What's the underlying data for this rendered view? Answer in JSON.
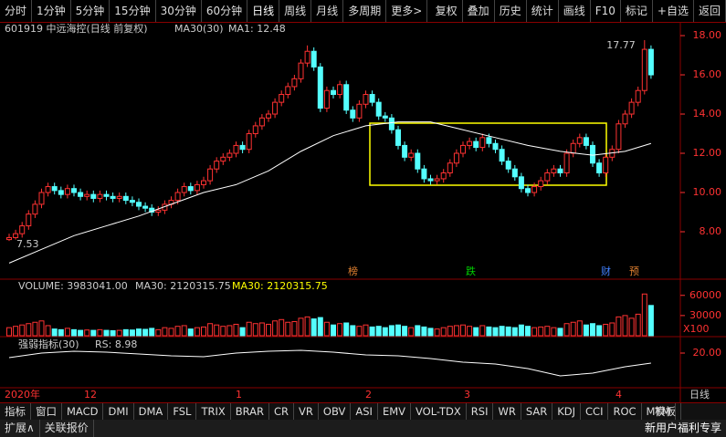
{
  "toolbar": {
    "left": [
      "分时",
      "1分钟",
      "5分钟",
      "15分钟",
      "30分钟",
      "60分钟",
      "日线",
      "周线",
      "月线",
      "多周期",
      "更多>"
    ],
    "right": [
      "复权",
      "叠加",
      "历史",
      "统计",
      "画线",
      "F10",
      "标记",
      "+自选",
      "返回"
    ]
  },
  "header": {
    "symbol": "601919 中远海控(日线 前复权)",
    "ma_label": "MA30(30)",
    "ma_value": "MA1: 12.48"
  },
  "chart_data": [
    {
      "type": "candlestick",
      "up_color": "#ff3232",
      "down_color": "#54ffff",
      "ylim": [
        5.86,
        18.56
      ],
      "yticks": [
        {
          "value": 8,
          "label": "8.00"
        },
        {
          "value": 10,
          "label": "10.00"
        },
        {
          "value": 12,
          "label": "12.00"
        },
        {
          "value": 14,
          "label": "14.00"
        },
        {
          "value": 16,
          "label": "16.00"
        },
        {
          "value": 18,
          "label": "18.00"
        }
      ],
      "candles": [
        [
          7.6,
          7.9,
          7.53,
          7.7
        ],
        [
          7.7,
          8.1,
          7.6,
          7.9
        ],
        [
          7.9,
          8.5,
          7.7,
          8.3
        ],
        [
          8.3,
          9.1,
          8.1,
          8.9
        ],
        [
          8.9,
          9.6,
          8.7,
          9.4
        ],
        [
          9.4,
          10.2,
          9.2,
          10.0
        ],
        [
          10.0,
          10.5,
          9.8,
          10.3
        ],
        [
          10.3,
          10.5,
          9.9,
          10.1
        ],
        [
          10.1,
          10.3,
          9.7,
          9.9
        ],
        [
          9.9,
          10.4,
          9.7,
          10.2
        ],
        [
          10.2,
          10.4,
          9.8,
          10.0
        ],
        [
          10.0,
          10.2,
          9.6,
          9.8
        ],
        [
          9.8,
          10.1,
          9.6,
          9.9
        ],
        [
          9.9,
          10.1,
          9.5,
          9.7
        ],
        [
          9.7,
          10.1,
          9.5,
          9.9
        ],
        [
          9.9,
          10.1,
          9.6,
          9.8
        ],
        [
          9.8,
          10.0,
          9.5,
          9.7
        ],
        [
          9.7,
          10.0,
          9.5,
          9.8
        ],
        [
          9.8,
          10.0,
          9.4,
          9.6
        ],
        [
          9.6,
          9.8,
          9.3,
          9.5
        ],
        [
          9.5,
          9.7,
          9.1,
          9.3
        ],
        [
          9.3,
          9.5,
          9.0,
          9.2
        ],
        [
          9.2,
          9.4,
          8.8,
          9.0
        ],
        [
          9.0,
          9.3,
          8.8,
          9.1
        ],
        [
          9.1,
          9.6,
          8.9,
          9.4
        ],
        [
          9.4,
          9.8,
          9.2,
          9.6
        ],
        [
          9.6,
          10.2,
          9.4,
          10.0
        ],
        [
          10.0,
          10.5,
          9.8,
          10.3
        ],
        [
          10.3,
          10.5,
          9.9,
          10.1
        ],
        [
          10.1,
          10.6,
          9.9,
          10.4
        ],
        [
          10.4,
          10.8,
          10.2,
          10.6
        ],
        [
          10.6,
          11.4,
          10.4,
          11.2
        ],
        [
          11.2,
          11.8,
          11.0,
          11.6
        ],
        [
          11.6,
          12.0,
          11.4,
          11.8
        ],
        [
          11.8,
          12.2,
          11.6,
          12.0
        ],
        [
          12.0,
          12.6,
          11.8,
          12.4
        ],
        [
          12.4,
          12.6,
          12.0,
          12.2
        ],
        [
          12.2,
          13.2,
          12.0,
          13.0
        ],
        [
          13.0,
          13.6,
          12.8,
          13.4
        ],
        [
          13.4,
          14.0,
          13.2,
          13.8
        ],
        [
          13.8,
          14.2,
          13.6,
          14.0
        ],
        [
          14.0,
          14.8,
          13.8,
          14.6
        ],
        [
          14.6,
          15.2,
          14.4,
          15.0
        ],
        [
          15.0,
          15.6,
          14.8,
          15.4
        ],
        [
          15.4,
          16.0,
          15.2,
          15.8
        ],
        [
          15.8,
          16.8,
          15.6,
          16.6
        ],
        [
          16.6,
          17.5,
          16.4,
          17.2
        ],
        [
          17.2,
          17.4,
          16.2,
          16.4
        ],
        [
          16.4,
          16.6,
          14.1,
          14.3
        ],
        [
          14.3,
          15.4,
          14.1,
          15.2
        ],
        [
          15.2,
          15.4,
          14.8,
          15.0
        ],
        [
          15.0,
          15.7,
          14.8,
          15.5
        ],
        [
          15.5,
          15.7,
          14.0,
          14.2
        ],
        [
          14.2,
          14.4,
          13.6,
          13.8
        ],
        [
          13.8,
          14.7,
          13.6,
          14.5
        ],
        [
          14.5,
          15.2,
          14.3,
          15.0
        ],
        [
          15.0,
          15.2,
          14.4,
          14.6
        ],
        [
          14.6,
          14.8,
          13.7,
          13.9
        ],
        [
          13.9,
          14.1,
          13.6,
          13.8
        ],
        [
          13.8,
          14.0,
          13.0,
          13.2
        ],
        [
          13.2,
          13.4,
          12.2,
          12.4
        ],
        [
          12.4,
          12.6,
          11.6,
          11.8
        ],
        [
          11.8,
          12.2,
          11.6,
          12.0
        ],
        [
          12.0,
          12.2,
          11.0,
          11.2
        ],
        [
          11.2,
          11.4,
          10.5,
          10.7
        ],
        [
          10.7,
          10.9,
          10.4,
          10.6
        ],
        [
          10.6,
          10.9,
          10.4,
          10.7
        ],
        [
          10.7,
          11.2,
          10.5,
          11.0
        ],
        [
          11.0,
          11.7,
          10.8,
          11.5
        ],
        [
          11.5,
          12.2,
          11.3,
          12.0
        ],
        [
          12.0,
          12.6,
          11.8,
          12.4
        ],
        [
          12.4,
          12.8,
          12.2,
          12.6
        ],
        [
          12.6,
          12.8,
          12.1,
          12.3
        ],
        [
          12.3,
          13.0,
          12.1,
          12.8
        ],
        [
          12.8,
          13.0,
          12.3,
          12.5
        ],
        [
          12.5,
          12.7,
          12.0,
          12.2
        ],
        [
          12.2,
          12.4,
          11.4,
          11.6
        ],
        [
          11.6,
          11.8,
          11.0,
          11.2
        ],
        [
          11.2,
          11.4,
          10.6,
          10.8
        ],
        [
          10.8,
          11.0,
          10.0,
          10.2
        ],
        [
          10.2,
          10.4,
          9.8,
          10.0
        ],
        [
          10.0,
          10.5,
          9.8,
          10.3
        ],
        [
          10.3,
          10.8,
          10.1,
          10.6
        ],
        [
          10.6,
          11.2,
          10.4,
          11.0
        ],
        [
          11.0,
          11.4,
          10.8,
          11.2
        ],
        [
          11.2,
          11.4,
          10.8,
          11.0
        ],
        [
          11.0,
          12.2,
          10.8,
          12.0
        ],
        [
          12.0,
          12.7,
          11.8,
          12.5
        ],
        [
          12.5,
          13.0,
          12.3,
          12.8
        ],
        [
          12.8,
          13.0,
          12.2,
          12.4
        ],
        [
          12.4,
          12.6,
          11.3,
          11.5
        ],
        [
          11.5,
          11.7,
          10.8,
          11.0
        ],
        [
          11.0,
          12.0,
          10.8,
          11.8
        ],
        [
          11.8,
          12.4,
          11.6,
          12.2
        ],
        [
          12.2,
          13.7,
          12.0,
          13.5
        ],
        [
          13.5,
          14.2,
          13.3,
          14.0
        ],
        [
          14.0,
          14.8,
          13.8,
          14.6
        ],
        [
          14.6,
          15.4,
          14.4,
          15.2
        ],
        [
          15.2,
          17.77,
          15.0,
          17.3
        ],
        [
          17.3,
          17.5,
          15.8,
          16.0
        ]
      ],
      "ma30": {
        "color": "#ffffff",
        "x": [
          0,
          5,
          10,
          15,
          20,
          25,
          30,
          35,
          40,
          45,
          50,
          55,
          60,
          65,
          70,
          75,
          80,
          85,
          90,
          95,
          99
        ],
        "values": [
          6.4,
          7.1,
          7.8,
          8.3,
          8.8,
          9.4,
          10.0,
          10.4,
          11.1,
          12.1,
          12.9,
          13.4,
          13.6,
          13.6,
          13.2,
          12.8,
          12.4,
          12.1,
          11.9,
          12.1,
          12.5
        ]
      }
    },
    {
      "type": "bar",
      "title": "VOLUME: 3983041.00",
      "legend": [
        "MA30: 2120315.75",
        "MA30: 2120315.75"
      ],
      "unit_label": "X100",
      "ylim": [
        0,
        80000
      ],
      "yticks": [
        30000,
        60000
      ],
      "values": [
        12000,
        14000,
        16000,
        18000,
        20000,
        22000,
        15000,
        10000,
        9000,
        11000,
        9000,
        8000,
        8500,
        8000,
        9000,
        8000,
        7500,
        8000,
        9000,
        8500,
        10000,
        9500,
        11000,
        9000,
        12000,
        11000,
        14000,
        15000,
        10000,
        12000,
        13000,
        18000,
        16000,
        14000,
        15000,
        17000,
        12000,
        20000,
        18000,
        19000,
        17000,
        22000,
        24000,
        20000,
        21000,
        26000,
        28000,
        25000,
        27000,
        20000,
        16000,
        18000,
        19000,
        15000,
        14000,
        16000,
        13000,
        14000,
        12000,
        15000,
        16000,
        14000,
        12000,
        15000,
        13000,
        11000,
        10000,
        12000,
        14000,
        15000,
        16000,
        14000,
        12000,
        15000,
        13000,
        12000,
        14000,
        13000,
        12000,
        16000,
        14000,
        12000,
        13000,
        14000,
        12000,
        11000,
        18000,
        20000,
        22000,
        16000,
        18000,
        15000,
        17000,
        19000,
        28000,
        30000,
        26000,
        32000,
        62000,
        45000
      ]
    },
    {
      "type": "line",
      "title": "强弱指标(30)",
      "value_label": "RS: 8.98",
      "color": "#ffffff",
      "ylim": [
        -15,
        35
      ],
      "yticks": [
        {
          "value": 20,
          "label": "20.00"
        }
      ],
      "x": [
        0,
        5,
        10,
        15,
        20,
        25,
        30,
        35,
        40,
        45,
        50,
        55,
        60,
        65,
        70,
        75,
        80,
        85,
        90,
        95,
        99
      ],
      "values": [
        15,
        20,
        22,
        21,
        19,
        17,
        16,
        20,
        22,
        23,
        21,
        18,
        17,
        14,
        10,
        8,
        3,
        -5,
        -2,
        5,
        9
      ]
    }
  ],
  "events": [
    "榜",
    "跌",
    "财",
    "预"
  ],
  "date_labels": [
    "2020年",
    "12",
    "1",
    "2",
    "3",
    "4"
  ],
  "tabs": [
    "指标",
    "窗口",
    "MACD",
    "DMI",
    "DMA",
    "FSL",
    "TRIX",
    "BRAR",
    "CR",
    "VR",
    "OBV",
    "ASI",
    "EMV",
    "VOL-TDX",
    "RSI",
    "WR",
    "SAR",
    "KDJ",
    "CCI",
    "ROC",
    "MTM"
  ],
  "tabs_right": "模板",
  "period": "日线",
  "footer": {
    "left": [
      "扩展∧",
      "关联报价"
    ],
    "right": "新用户福利专享"
  }
}
